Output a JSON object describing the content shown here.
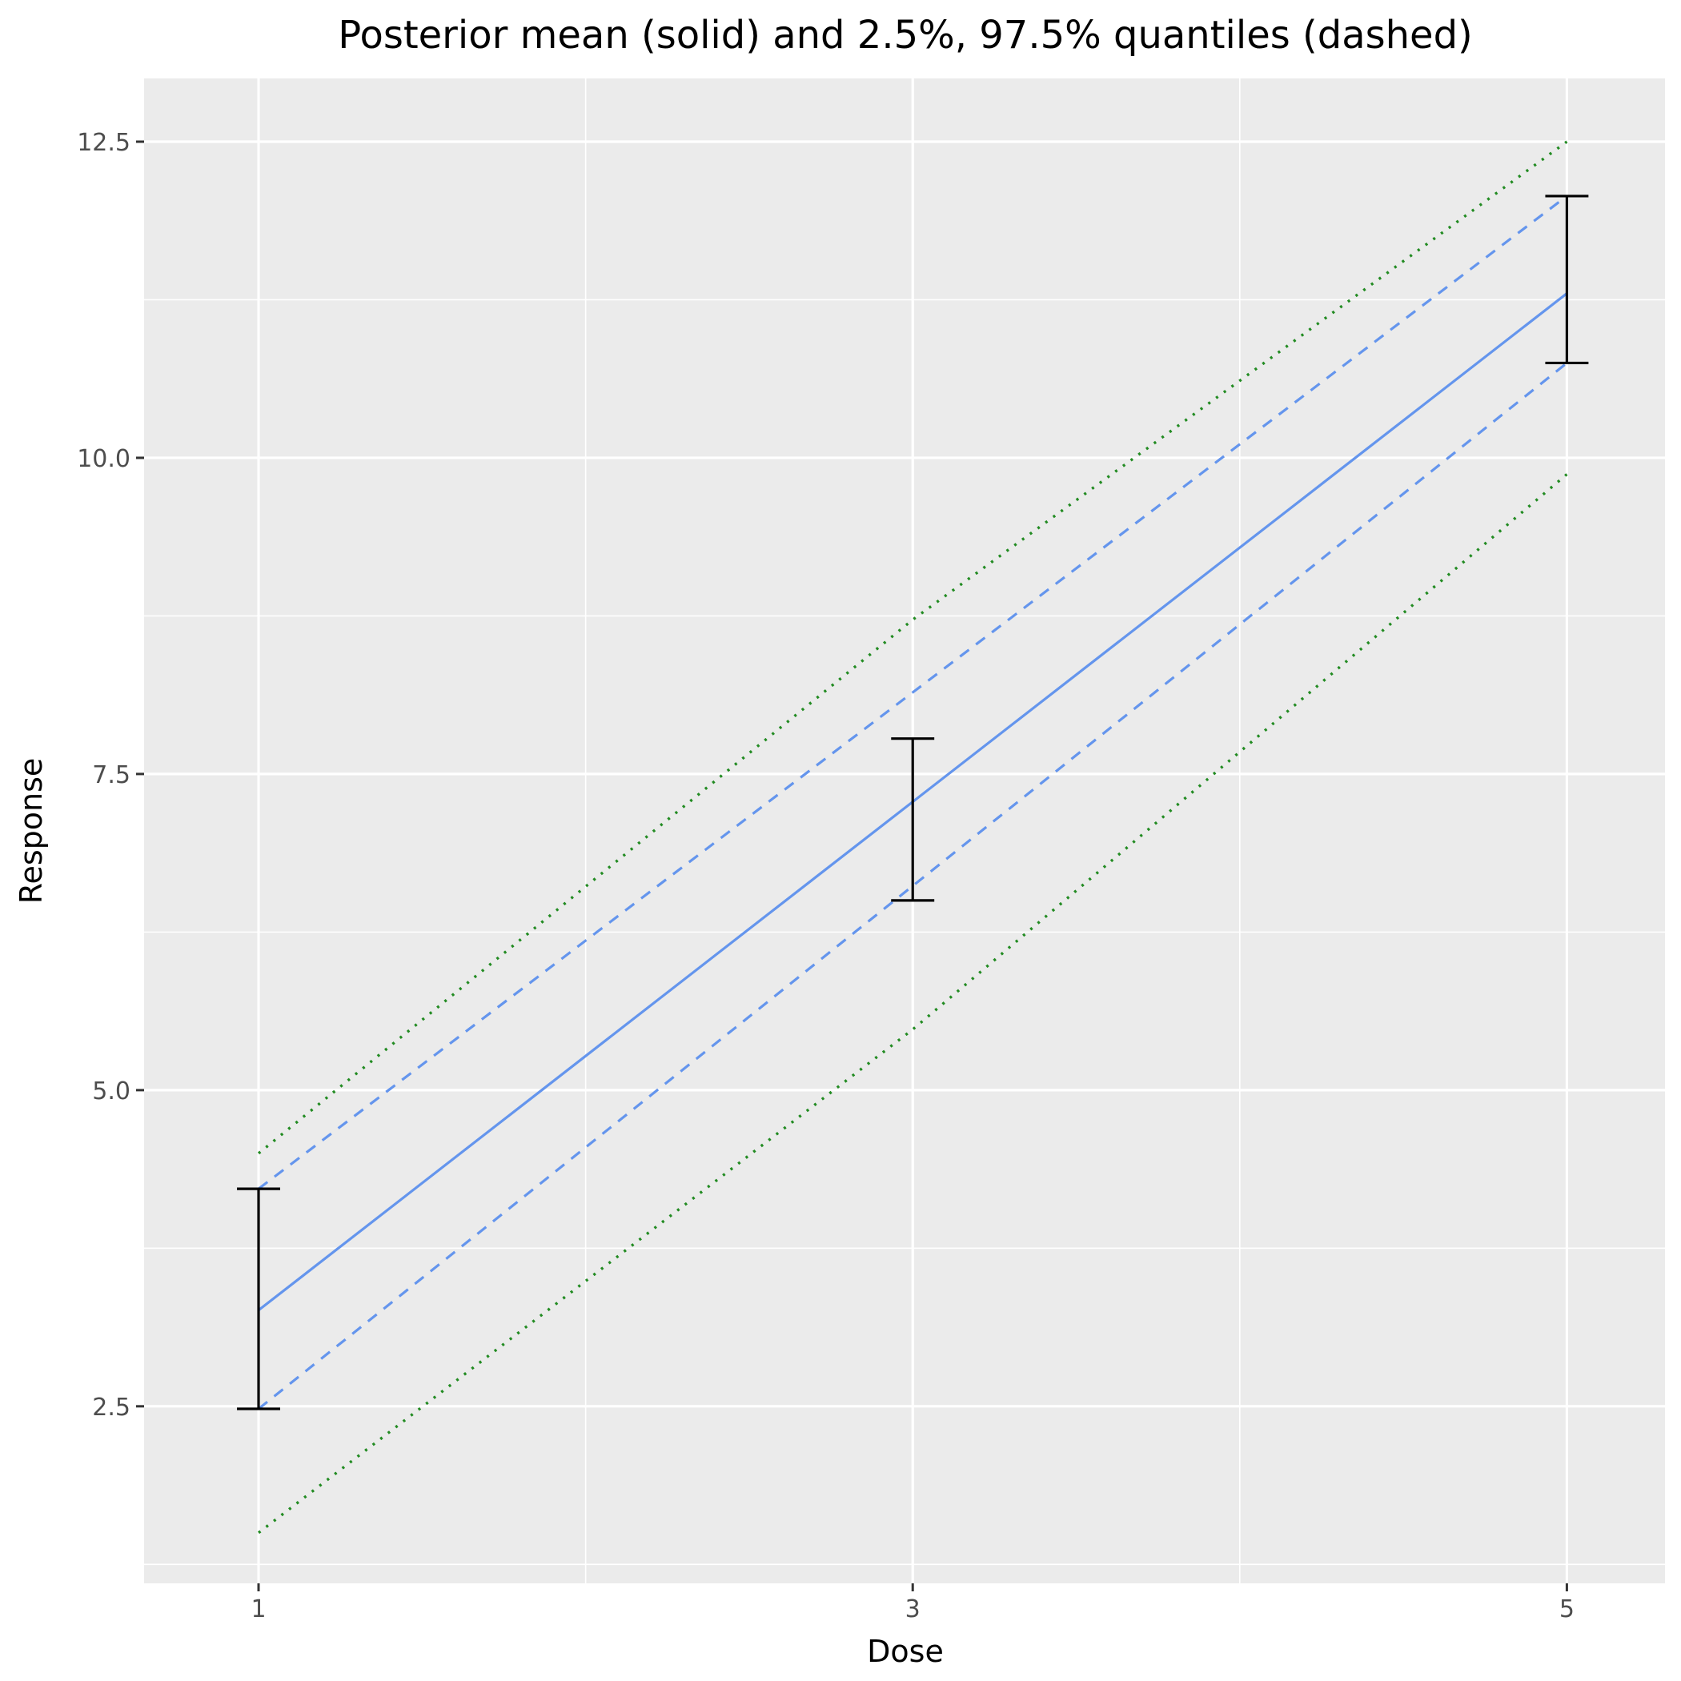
{
  "chart_data": {
    "type": "line",
    "title": "Posterior mean (solid) and 2.5%, 97.5% quantiles (dashed)",
    "xlabel": "Dose",
    "ylabel": "Response",
    "xlim": [
      0.65,
      5.3
    ],
    "ylim": [
      1.1,
      13.0
    ],
    "x_ticks": [
      1,
      3,
      5
    ],
    "x_tick_labels": [
      "1",
      "3",
      "5"
    ],
    "y_ticks": [
      2.5,
      5.0,
      7.5,
      10.0,
      12.5
    ],
    "y_tick_labels": [
      "2.5",
      "5.0",
      "7.5",
      "10.0",
      "12.5"
    ],
    "grid": true,
    "legend": "none",
    "series": [
      {
        "style": "solid",
        "color": "#6495ED",
        "x": [
          1,
          5
        ],
        "y": [
          3.26,
          11.3
        ]
      },
      {
        "style": "dashed",
        "color": "#6495ED",
        "x": [
          1,
          5
        ],
        "y": [
          4.22,
          12.07
        ]
      },
      {
        "style": "dashed",
        "color": "#6495ED",
        "x": [
          1,
          5
        ],
        "y": [
          2.48,
          10.75
        ]
      },
      {
        "style": "dotted",
        "color": "#228B22",
        "x": [
          1,
          3,
          5
        ],
        "y": [
          4.5,
          8.72,
          12.5
        ]
      },
      {
        "style": "dotted",
        "color": "#228B22",
        "x": [
          1,
          3,
          5
        ],
        "y": [
          1.5,
          5.48,
          9.87
        ]
      }
    ],
    "error_bars": [
      {
        "x": 1,
        "lower": 2.48,
        "upper": 4.22
      },
      {
        "x": 3,
        "lower": 6.5,
        "upper": 7.78
      },
      {
        "x": 5,
        "lower": 10.75,
        "upper": 12.07
      }
    ],
    "colors": {
      "panel_background": "#EBEBEB",
      "grid": "#FFFFFF",
      "error_bar": "#000000"
    }
  }
}
